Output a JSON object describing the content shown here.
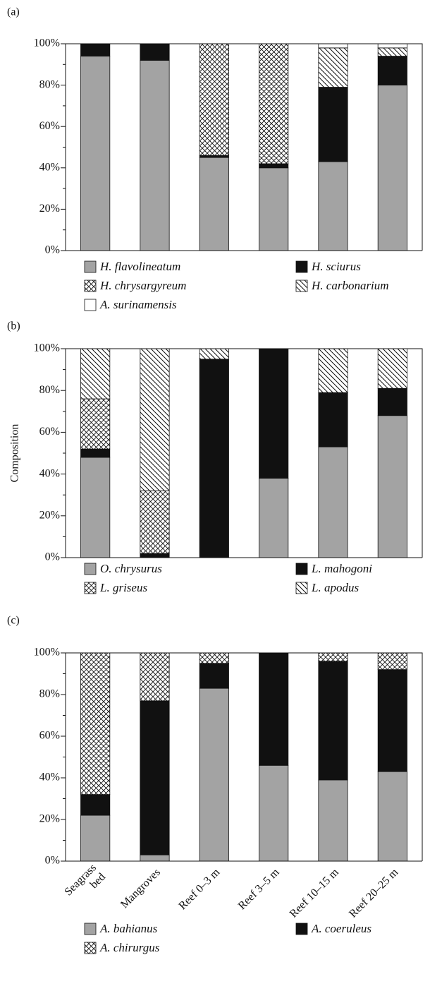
{
  "chart_data": [
    {
      "type": "bar",
      "stacked": true,
      "panel_label": "(a)",
      "ylim": [
        0,
        100
      ],
      "yticks": [
        {
          "value": 0,
          "label": "0%"
        },
        {
          "value": 20,
          "label": "20%"
        },
        {
          "value": 40,
          "label": "40%"
        },
        {
          "value": 60,
          "label": "60%"
        },
        {
          "value": 80,
          "label": "80%"
        },
        {
          "value": 100,
          "label": "100%"
        }
      ],
      "minor_yticks": [
        10,
        30,
        50,
        70,
        90
      ],
      "legend_columns": 2,
      "series": [
        {
          "name": "H. flavolineatum",
          "color": "#a3a3a3",
          "pattern": "solid",
          "values": [
            94,
            92,
            45,
            40,
            43,
            80
          ]
        },
        {
          "name": "H. sciurus",
          "color": "#111111",
          "pattern": "solid",
          "values": [
            6,
            8,
            1,
            2,
            36,
            14
          ]
        },
        {
          "name": "H. chrysargyreum",
          "color": "#111111",
          "pattern": "crosshatch",
          "values": [
            0,
            0,
            54,
            58,
            0,
            0
          ]
        },
        {
          "name": "H. carbonarium",
          "color": "#111111",
          "pattern": "hatch",
          "values": [
            0,
            0,
            0,
            0,
            19,
            4
          ]
        },
        {
          "name": "A. surinamensis",
          "color": "#ffffff",
          "pattern": "solid",
          "values": [
            0,
            0,
            0,
            0,
            2,
            2
          ]
        }
      ]
    },
    {
      "type": "bar",
      "stacked": true,
      "panel_label": "(b)",
      "ylabel": "Composition",
      "ylim": [
        0,
        100
      ],
      "yticks": [
        {
          "value": 0,
          "label": "0%"
        },
        {
          "value": 20,
          "label": "20%"
        },
        {
          "value": 40,
          "label": "40%"
        },
        {
          "value": 60,
          "label": "60%"
        },
        {
          "value": 80,
          "label": "80%"
        },
        {
          "value": 100,
          "label": "100%"
        }
      ],
      "minor_yticks": [
        10,
        30,
        50,
        70,
        90
      ],
      "legend_columns": 2,
      "series": [
        {
          "name": "O. chrysurus",
          "color": "#a3a3a3",
          "pattern": "solid",
          "values": [
            48,
            0,
            0,
            38,
            53,
            68
          ]
        },
        {
          "name": "L. mahogoni",
          "color": "#111111",
          "pattern": "solid",
          "values": [
            4,
            2,
            95,
            62,
            26,
            13
          ]
        },
        {
          "name": "L. griseus",
          "color": "#111111",
          "pattern": "crosshatch",
          "values": [
            24,
            30,
            0,
            0,
            0,
            0
          ]
        },
        {
          "name": "L. apodus",
          "color": "#111111",
          "pattern": "hatch",
          "values": [
            24,
            68,
            5,
            0,
            21,
            19
          ]
        }
      ]
    },
    {
      "type": "bar",
      "stacked": true,
      "panel_label": "(c)",
      "categories": [
        "Seagrass\nbed",
        "Mangroves",
        "Reef 0–3 m",
        "Reef 3–5 m",
        "Reef 10–15 m",
        "Reef 20–25 m"
      ],
      "ylim": [
        0,
        100
      ],
      "yticks": [
        {
          "value": 0,
          "label": "0%"
        },
        {
          "value": 20,
          "label": "20%"
        },
        {
          "value": 40,
          "label": "40%"
        },
        {
          "value": 60,
          "label": "60%"
        },
        {
          "value": 80,
          "label": "80%"
        },
        {
          "value": 100,
          "label": "100%"
        }
      ],
      "minor_yticks": [
        10,
        30,
        50,
        70,
        90
      ],
      "legend_columns": 2,
      "series": [
        {
          "name": "A. bahianus",
          "color": "#a3a3a3",
          "pattern": "solid",
          "values": [
            22,
            3,
            83,
            46,
            39,
            43
          ]
        },
        {
          "name": "A. coeruleus",
          "color": "#111111",
          "pattern": "solid",
          "values": [
            10,
            74,
            12,
            54,
            57,
            49
          ]
        },
        {
          "name": "A. chirurgus",
          "color": "#111111",
          "pattern": "crosshatch",
          "values": [
            68,
            23,
            5,
            0,
            4,
            8
          ]
        }
      ]
    }
  ]
}
